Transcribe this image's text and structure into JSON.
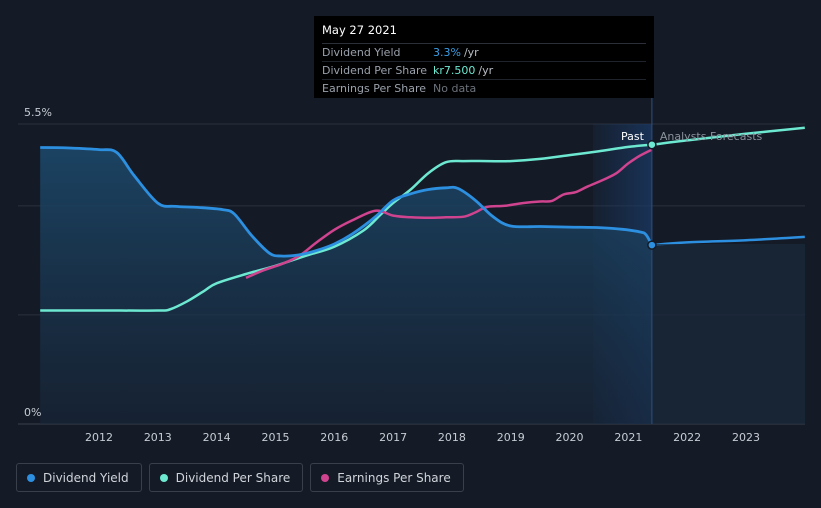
{
  "tooltip": {
    "date": "May 27 2021",
    "rows": [
      {
        "label": "Dividend Yield",
        "value": "3.3%",
        "unit": "/yr"
      },
      {
        "label": "Dividend Per Share",
        "value": "kr7.500",
        "unit": "/yr"
      },
      {
        "label": "Earnings Per Share",
        "value": "No data",
        "unit": ""
      }
    ]
  },
  "legend": [
    {
      "label": "Dividend Yield",
      "color": "#2d8fe0"
    },
    {
      "label": "Dividend Per Share",
      "color": "#6de9d2"
    },
    {
      "label": "Earnings Per Share",
      "color": "#d0438f"
    }
  ],
  "chart_data": {
    "type": "line",
    "x_ticks": [
      "2012",
      "2013",
      "2014",
      "2015",
      "2016",
      "2017",
      "2018",
      "2019",
      "2020",
      "2021",
      "2022",
      "2023"
    ],
    "y_ticks": [
      "0%",
      "5.5%"
    ],
    "ylim": [
      0,
      5.5
    ],
    "xlim": [
      2011,
      2024
    ],
    "past_label": "Past",
    "forecast_label": "Analysts Forecasts",
    "divider_x": 2021.4,
    "series": [
      {
        "name": "Dividend Yield",
        "color": "#2d8fe0",
        "points": [
          [
            2011.0,
            5.07
          ],
          [
            2011.5,
            5.06
          ],
          [
            2012.0,
            5.03
          ],
          [
            2012.3,
            4.98
          ],
          [
            2012.6,
            4.55
          ],
          [
            2013.0,
            4.05
          ],
          [
            2013.3,
            3.99
          ],
          [
            2013.7,
            3.97
          ],
          [
            2014.1,
            3.93
          ],
          [
            2014.3,
            3.85
          ],
          [
            2014.6,
            3.45
          ],
          [
            2014.9,
            3.13
          ],
          [
            2015.1,
            3.08
          ],
          [
            2015.4,
            3.1
          ],
          [
            2015.7,
            3.18
          ],
          [
            2016.0,
            3.3
          ],
          [
            2016.3,
            3.48
          ],
          [
            2016.7,
            3.8
          ],
          [
            2017.0,
            4.1
          ],
          [
            2017.3,
            4.22
          ],
          [
            2017.6,
            4.3
          ],
          [
            2017.9,
            4.33
          ],
          [
            2018.1,
            4.32
          ],
          [
            2018.4,
            4.1
          ],
          [
            2018.7,
            3.8
          ],
          [
            2019.0,
            3.63
          ],
          [
            2019.5,
            3.62
          ],
          [
            2020.0,
            3.61
          ],
          [
            2020.5,
            3.6
          ],
          [
            2020.9,
            3.57
          ],
          [
            2021.2,
            3.52
          ],
          [
            2021.3,
            3.47
          ],
          [
            2021.4,
            3.28
          ]
        ],
        "forecast": [
          [
            2021.4,
            3.28
          ],
          [
            2022.0,
            3.33
          ],
          [
            2023.0,
            3.37
          ],
          [
            2024.0,
            3.43
          ]
        ]
      },
      {
        "name": "Dividend Per Share",
        "color": "#6de9d2",
        "points": [
          [
            2011.0,
            2.08
          ],
          [
            2012.0,
            2.08
          ],
          [
            2013.0,
            2.08
          ],
          [
            2013.2,
            2.1
          ],
          [
            2013.5,
            2.25
          ],
          [
            2013.8,
            2.45
          ],
          [
            2014.0,
            2.58
          ],
          [
            2014.5,
            2.75
          ],
          [
            2015.0,
            2.9
          ],
          [
            2015.5,
            3.08
          ],
          [
            2016.0,
            3.25
          ],
          [
            2016.5,
            3.55
          ],
          [
            2016.8,
            3.85
          ],
          [
            2017.0,
            4.05
          ],
          [
            2017.3,
            4.3
          ],
          [
            2017.6,
            4.6
          ],
          [
            2017.9,
            4.8
          ],
          [
            2018.2,
            4.82
          ],
          [
            2018.6,
            4.82
          ],
          [
            2019.0,
            4.82
          ],
          [
            2019.5,
            4.86
          ],
          [
            2020.0,
            4.93
          ],
          [
            2020.5,
            5.0
          ],
          [
            2021.0,
            5.08
          ],
          [
            2021.4,
            5.12
          ]
        ],
        "forecast": [
          [
            2021.4,
            5.12
          ],
          [
            2022.0,
            5.2
          ],
          [
            2023.0,
            5.32
          ],
          [
            2024.0,
            5.43
          ]
        ]
      },
      {
        "name": "Earnings Per Share",
        "color": "#d0438f",
        "points": [
          [
            2014.5,
            2.68
          ],
          [
            2014.8,
            2.82
          ],
          [
            2015.1,
            2.93
          ],
          [
            2015.4,
            3.08
          ],
          [
            2015.7,
            3.33
          ],
          [
            2016.0,
            3.56
          ],
          [
            2016.3,
            3.73
          ],
          [
            2016.7,
            3.91
          ],
          [
            2017.0,
            3.82
          ],
          [
            2017.3,
            3.79
          ],
          [
            2017.6,
            3.78
          ],
          [
            2017.9,
            3.79
          ],
          [
            2018.2,
            3.8
          ],
          [
            2018.4,
            3.88
          ],
          [
            2018.6,
            3.98
          ],
          [
            2018.9,
            4.0
          ],
          [
            2019.2,
            4.05
          ],
          [
            2019.5,
            4.08
          ],
          [
            2019.7,
            4.09
          ],
          [
            2019.9,
            4.21
          ],
          [
            2020.1,
            4.25
          ],
          [
            2020.3,
            4.35
          ],
          [
            2020.6,
            4.49
          ],
          [
            2020.8,
            4.6
          ],
          [
            2021.0,
            4.78
          ],
          [
            2021.2,
            4.92
          ],
          [
            2021.4,
            5.03
          ]
        ]
      }
    ]
  }
}
